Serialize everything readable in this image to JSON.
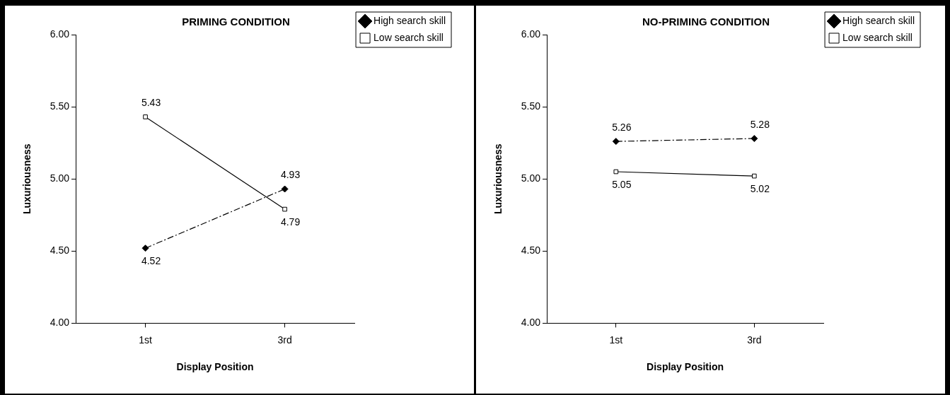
{
  "chart_data": [
    {
      "type": "line",
      "title": "PRIMING CONDITION",
      "xlabel": "Display Position",
      "ylabel": "Luxuriousness",
      "categories": [
        "1st",
        "3rd"
      ],
      "ylim": [
        4,
        6
      ],
      "yticks": [
        {
          "value": 4,
          "label": "4.00"
        },
        {
          "value": 4.5,
          "label": "4.50"
        },
        {
          "value": 5,
          "label": "5.00"
        },
        {
          "value": 5.5,
          "label": "5.50"
        },
        {
          "value": 6,
          "label": "6.00"
        }
      ],
      "grid": false,
      "legend": "top right",
      "data_labels": true,
      "series": [
        {
          "name": "High search skill",
          "color": "#000000",
          "values": [
            4.52,
            4.93
          ],
          "marker": "diamond",
          "line_style": "dashed"
        },
        {
          "name": "Low search skill",
          "color": "#000000",
          "values": [
            5.43,
            4.79
          ],
          "marker": "square",
          "line_style": "solid"
        }
      ]
    },
    {
      "type": "line",
      "title": "NO-PRIMING CONDITION",
      "xlabel": "Display Position",
      "ylabel": "Luxuriousness",
      "categories": [
        "1st",
        "3rd"
      ],
      "ylim": [
        4,
        6
      ],
      "yticks": [
        {
          "value": 4,
          "label": "4.00"
        },
        {
          "value": 4.5,
          "label": "4.50"
        },
        {
          "value": 5,
          "label": "5.00"
        },
        {
          "value": 5.5,
          "label": "5.50"
        },
        {
          "value": 6,
          "label": "6.00"
        }
      ],
      "grid": false,
      "legend": "top right",
      "data_labels": true,
      "series": [
        {
          "name": "High search skill",
          "color": "#000000",
          "values": [
            5.26,
            5.28
          ],
          "marker": "diamond",
          "line_style": "dashed"
        },
        {
          "name": "Low search skill",
          "color": "#000000",
          "values": [
            5.05,
            5.02
          ],
          "marker": "square",
          "line_style": "solid"
        }
      ]
    }
  ]
}
